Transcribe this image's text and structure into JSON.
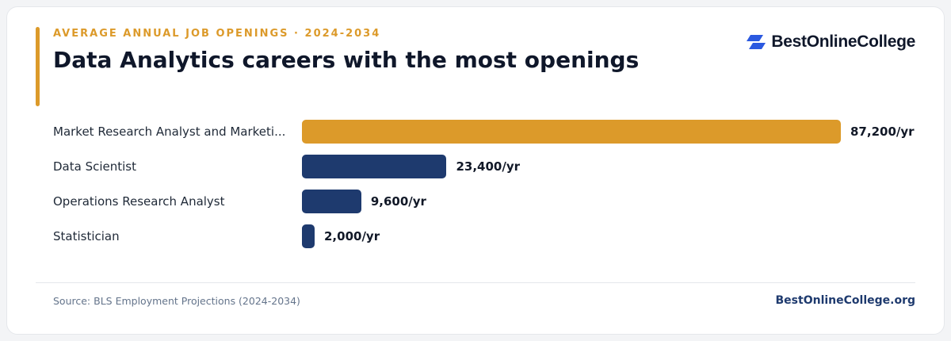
{
  "header": {
    "eyebrow": "AVERAGE ANNUAL JOB OPENINGS · 2024-2034",
    "title": "Data Analytics careers with the most openings"
  },
  "brand": {
    "name": "BestOnlineCollege",
    "logo_icon": "stacked-parallelogram-logo-icon",
    "logo_color": "#2b59e0"
  },
  "chart_data": {
    "type": "bar",
    "orientation": "horizontal",
    "title": "Data Analytics careers with the most openings",
    "categories": [
      "Market Research Analyst and Marketi...",
      "Data Scientist",
      "Operations Research Analyst",
      "Statistician"
    ],
    "values": [
      87200,
      23400,
      9600,
      2000
    ],
    "value_labels": [
      "87,200/yr",
      "23,400/yr",
      "9,600/yr",
      "2,000/yr"
    ],
    "unit": "/yr",
    "xlim": [
      0,
      87200
    ],
    "grid": false,
    "colors": {
      "highlight": "#dc9a2a",
      "default": "#1e3a6e"
    }
  },
  "footer": {
    "source": "Source: BLS Employment Projections (2024-2034)",
    "site": "BestOnlineCollege.org"
  }
}
